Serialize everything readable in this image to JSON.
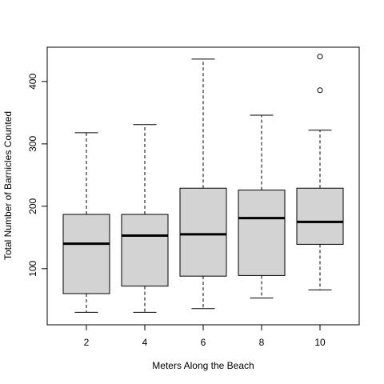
{
  "chart_data": {
    "type": "boxplot",
    "title": "",
    "xlabel": "Meters Along the Beach",
    "ylabel": "Total Number of Barnicles Counted",
    "categories": [
      "2",
      "4",
      "6",
      "8",
      "10"
    ],
    "ylim": [
      10,
      455
    ],
    "yticks": [
      "100",
      "200",
      "300",
      "400"
    ],
    "grid": false,
    "box_color": "#d3d3d3",
    "boxes": [
      {
        "category": "2",
        "min": 30,
        "q1": 60,
        "median": 140,
        "q3": 187,
        "max": 318,
        "outliers": []
      },
      {
        "category": "4",
        "min": 30,
        "q1": 72,
        "median": 153,
        "q3": 187,
        "max": 331,
        "outliers": []
      },
      {
        "category": "6",
        "min": 36,
        "q1": 88,
        "median": 155,
        "q3": 229,
        "max": 436,
        "outliers": []
      },
      {
        "category": "8",
        "min": 53,
        "q1": 89,
        "median": 181,
        "q3": 226,
        "max": 346,
        "outliers": []
      },
      {
        "category": "10",
        "min": 66,
        "q1": 139,
        "median": 175,
        "q3": 229,
        "max": 322,
        "outliers": [
          386,
          440
        ]
      }
    ]
  }
}
